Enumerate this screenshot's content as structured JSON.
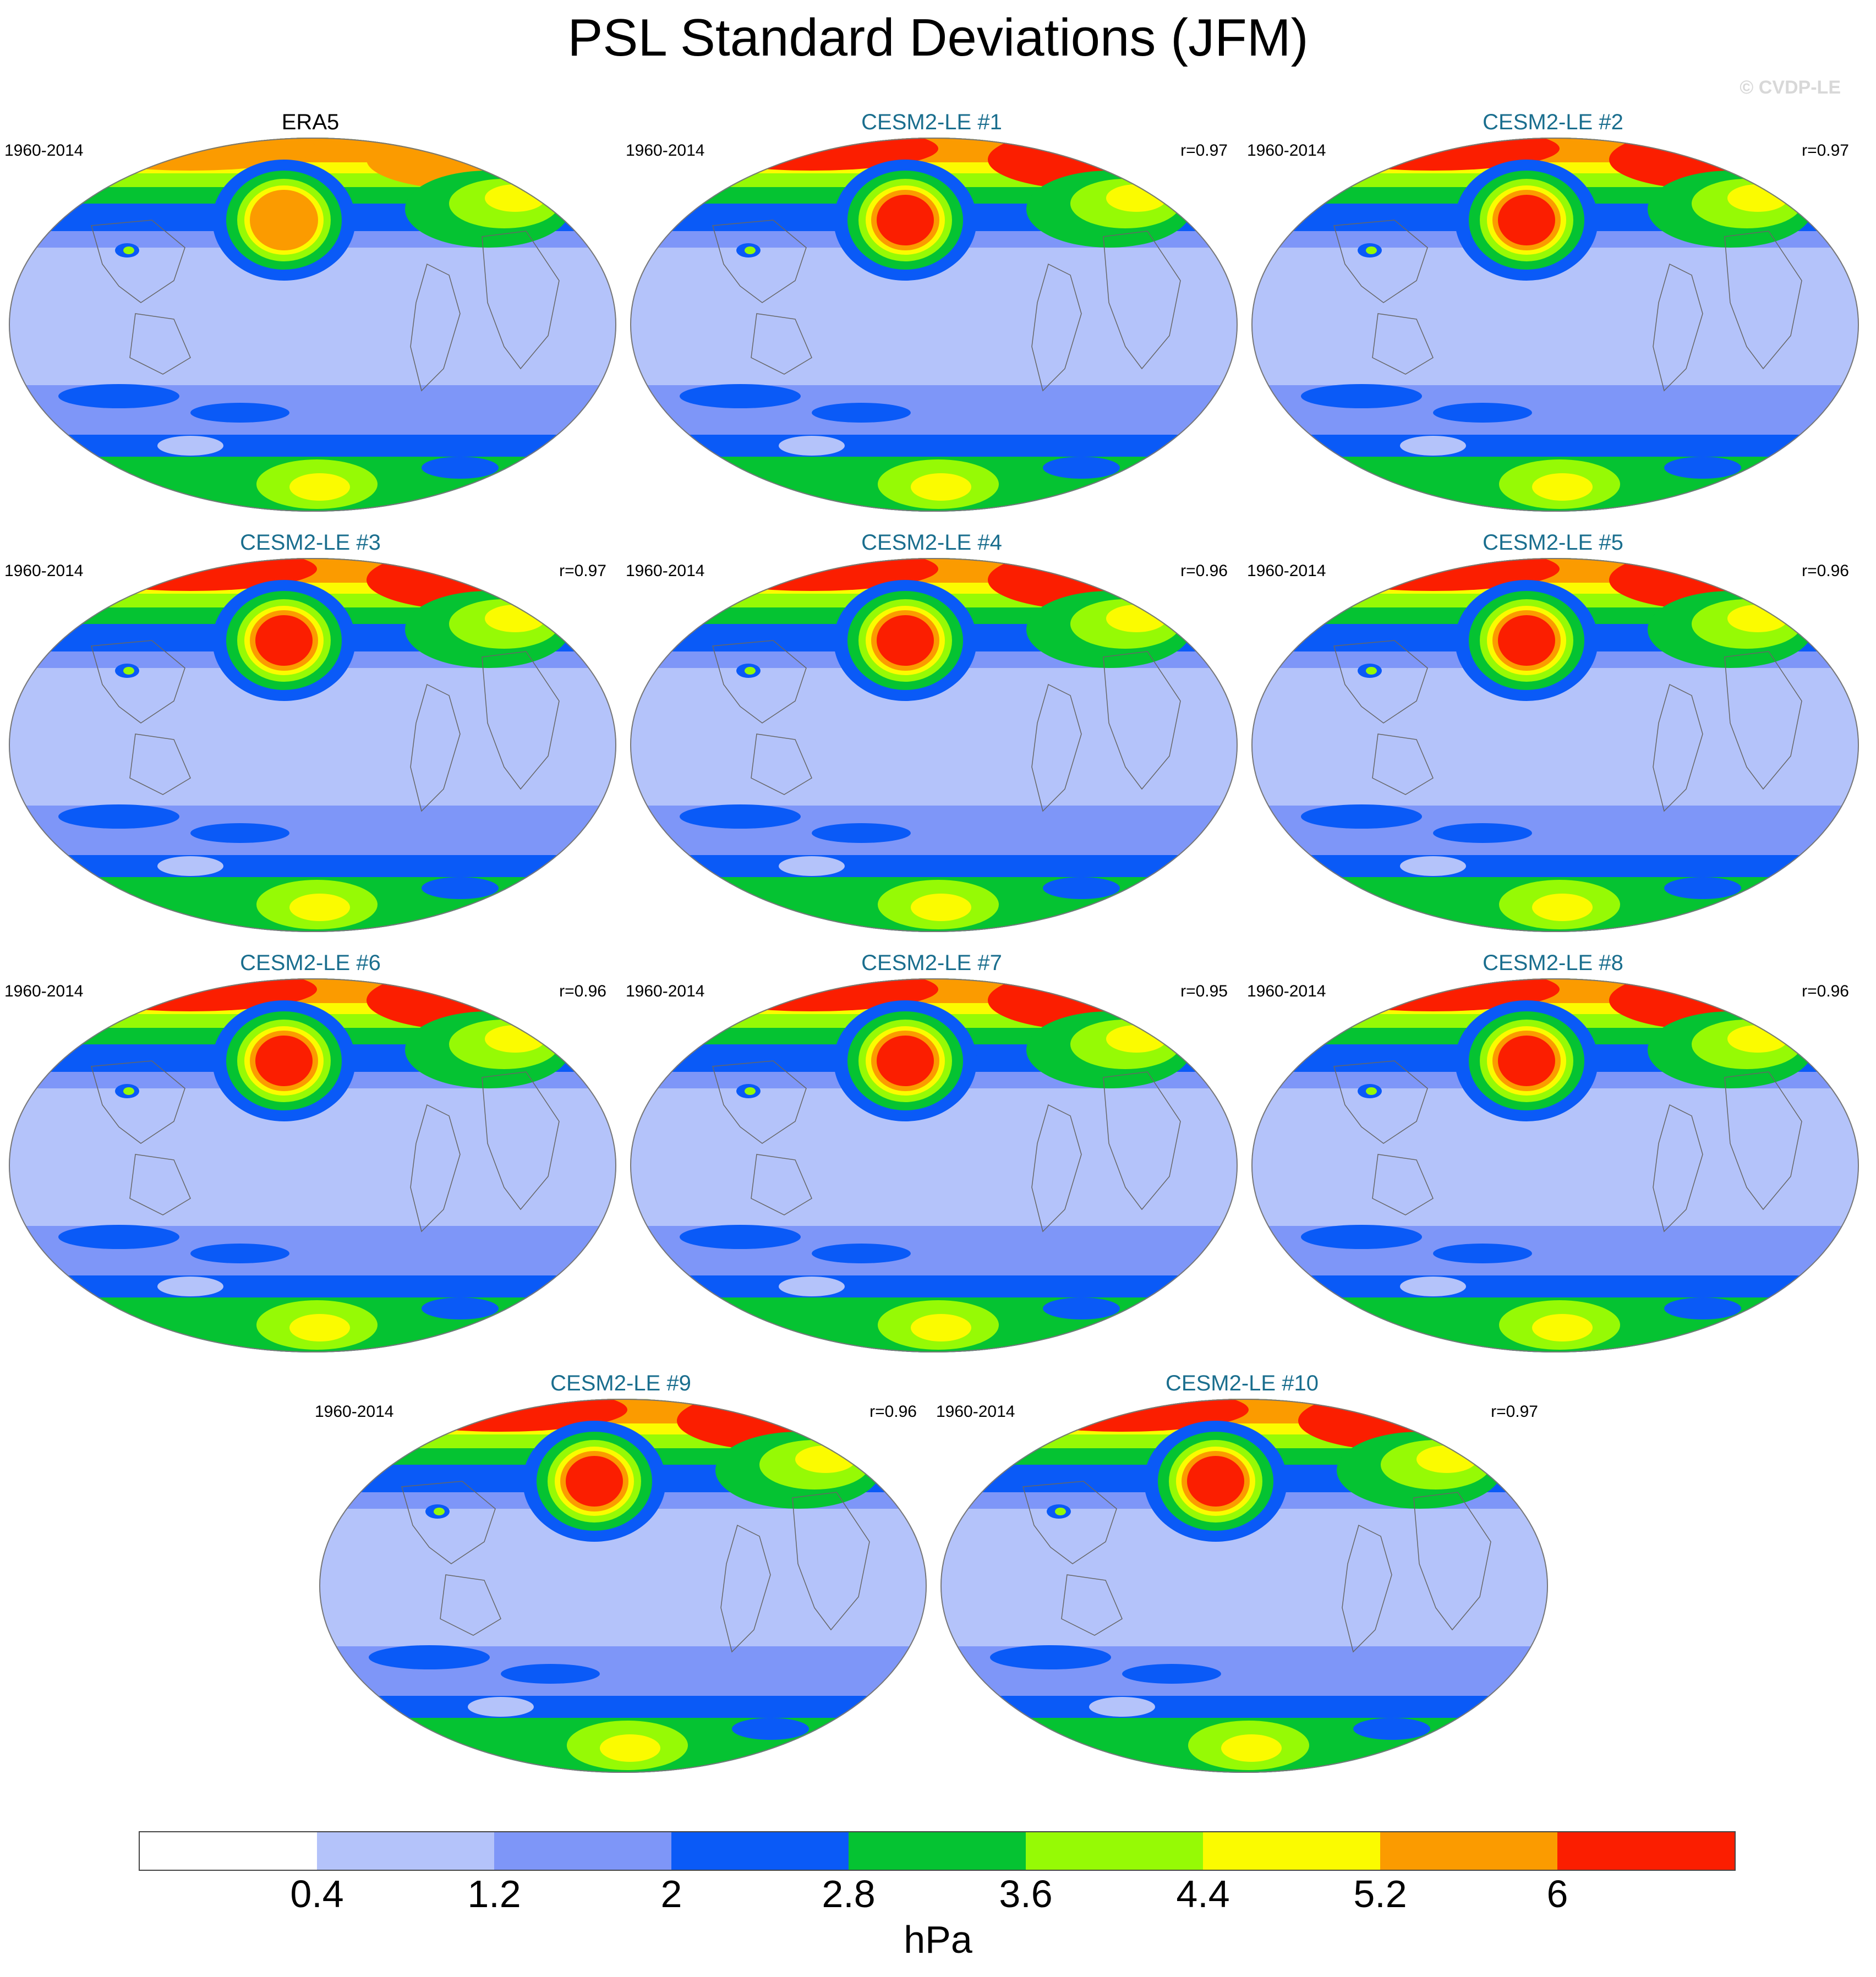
{
  "title": "PSL Standard Deviations (JFM)",
  "watermark": "© CVDP-LE",
  "legend": {
    "units": "hPa",
    "levels": [
      "0.4",
      "1.2",
      "2",
      "2.8",
      "3.6",
      "4.4",
      "5.2",
      "6"
    ],
    "colors": [
      "#ffffff",
      "#b4c3fa",
      "#7e96f8",
      "#0a5af7",
      "#05c332",
      "#96fa05",
      "#fbfb00",
      "#fb9b00",
      "#fb1e00"
    ]
  },
  "panels": [
    {
      "title": "ERA5",
      "period": "1960-2014",
      "corr": "",
      "obs": true
    },
    {
      "title": "CESM2-LE #1",
      "period": "1960-2014",
      "corr": "r=0.97"
    },
    {
      "title": "CESM2-LE #2",
      "period": "1960-2014",
      "corr": "r=0.97"
    },
    {
      "title": "CESM2-LE #3",
      "period": "1960-2014",
      "corr": "r=0.97"
    },
    {
      "title": "CESM2-LE #4",
      "period": "1960-2014",
      "corr": "r=0.96"
    },
    {
      "title": "CESM2-LE #5",
      "period": "1960-2014",
      "corr": "r=0.96"
    },
    {
      "title": "CESM2-LE #6",
      "period": "1960-2014",
      "corr": "r=0.96"
    },
    {
      "title": "CESM2-LE #7",
      "period": "1960-2014",
      "corr": "r=0.95"
    },
    {
      "title": "CESM2-LE #8",
      "period": "1960-2014",
      "corr": "r=0.96"
    },
    {
      "title": "CESM2-LE #9",
      "period": "1960-2014",
      "corr": "r=0.96"
    },
    {
      "title": "CESM2-LE #10",
      "period": "1960-2014",
      "corr": "r=0.97"
    }
  ]
}
